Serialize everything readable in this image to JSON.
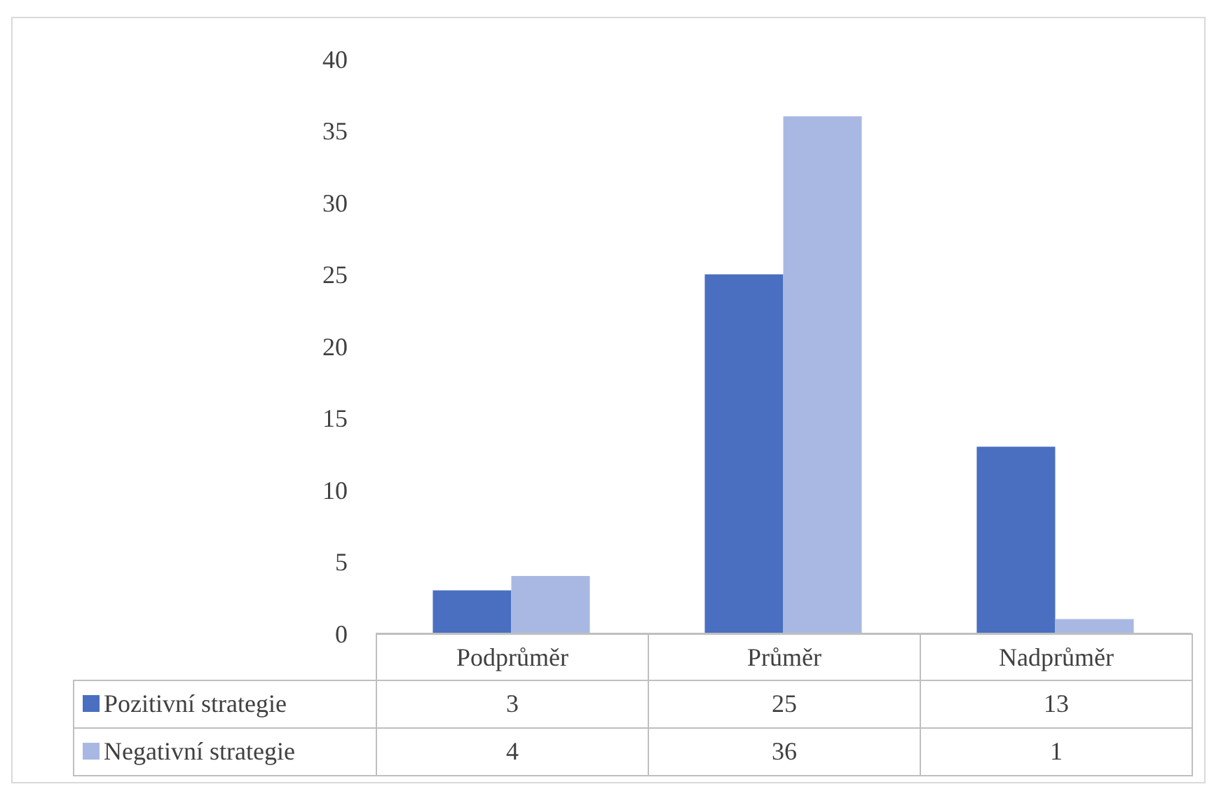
{
  "chart_data": {
    "type": "bar",
    "categories": [
      "Podprůměr",
      "Průměr",
      "Nadprůměr"
    ],
    "series": [
      {
        "name": "Pozitivní strategie",
        "color": "#4a6fc0",
        "values": [
          3,
          25,
          13
        ]
      },
      {
        "name": "Negativní strategie",
        "color": "#a9b8e3",
        "values": [
          4,
          36,
          1
        ]
      }
    ],
    "ylim": [
      0,
      40
    ],
    "yticks": [
      0,
      5,
      10,
      15,
      20,
      25,
      30,
      35,
      40
    ],
    "grid": false,
    "legend": "bottom",
    "data_labels": true
  }
}
